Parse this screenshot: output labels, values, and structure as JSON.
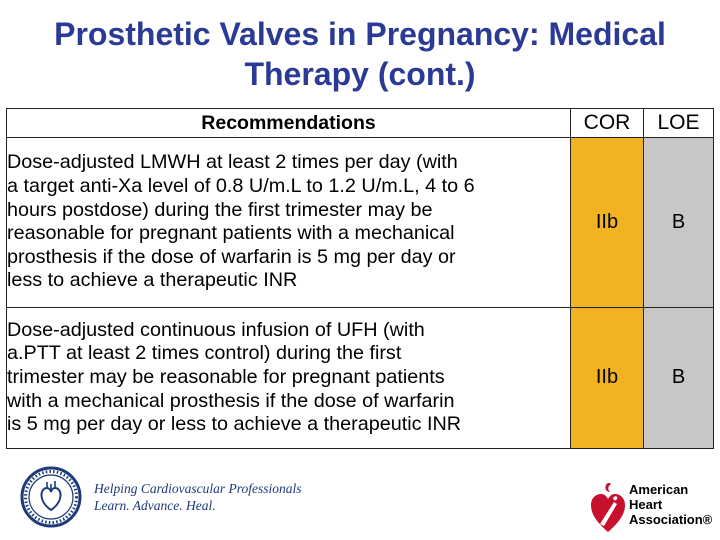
{
  "slide": {
    "title_line1": "Prosthetic Valves in Pregnancy: Medical",
    "title_line2": "Therapy (cont.)"
  },
  "table": {
    "headers": {
      "recommendations": "Recommendations",
      "cor": "COR",
      "loe": "LOE"
    },
    "rows": [
      {
        "lines": [
          "Dose-adjusted LMWH at least 2 times per day (with",
          "a target anti-Xa level of 0.8 U/m.L to 1.2 U/m.L, 4 to 6",
          "hours postdose) during the first trimester may be",
          "reasonable for pregnant patients with a mechanical",
          "prosthesis if the dose of warfarin is 5 mg per day or",
          "less to achieve a therapeutic INR"
        ],
        "cor": "IIb",
        "loe": "B"
      },
      {
        "lines": [
          "Dose-adjusted continuous infusion of UFH (with",
          "a.PTT at least 2 times control) during the first",
          "trimester may be reasonable for pregnant patients",
          "with a mechanical prosthesis if the dose of warfarin",
          "is 5 mg per day or less to achieve a therapeutic INR"
        ],
        "cor": "IIb",
        "loe": "B"
      }
    ]
  },
  "footer": {
    "acc_slogan_line1": "Helping Cardiovascular Professionals",
    "acc_slogan_line2": "Learn. Advance. Heal.",
    "aha_line1": "American",
    "aha_line2": "Heart",
    "aha_line3": "Association®"
  },
  "colors": {
    "title": "#2a3a96",
    "cor_fill": "#f2b322",
    "loe_fill": "#c7c7c7",
    "aha_red": "#c8102e"
  }
}
